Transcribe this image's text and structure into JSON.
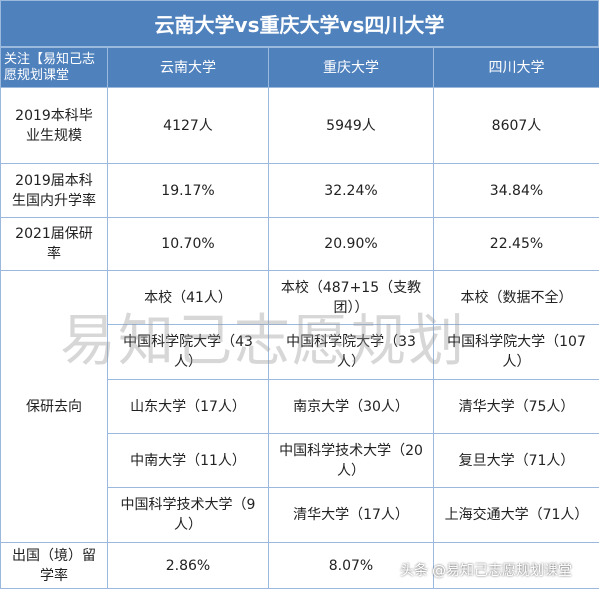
{
  "title": "云南大学vs重庆大学vs四川大学",
  "header": {
    "corner": "关注【易知己志愿规划课堂",
    "col1": "云南大学",
    "col2": "重庆大学",
    "col3": "四川大学"
  },
  "rows": {
    "grads": {
      "label": "2019本科毕业生规模",
      "v1": "4127人",
      "v2": "5949人",
      "v3": "8607人"
    },
    "further": {
      "label": "2019届本科生国内升学率",
      "v1": "19.17%",
      "v2": "32.24%",
      "v3": "34.84%"
    },
    "baoyan": {
      "label": "2021届保研率",
      "v1": "10.70%",
      "v2": "20.90%",
      "v3": "22.45%"
    },
    "dest": {
      "label": "保研去向",
      "items": [
        {
          "v1": "本校（41人）",
          "v2": "本校（487+15（支教团））",
          "v3": "本校（数据不全）"
        },
        {
          "v1": "中国科学院大学（43人）",
          "v2": "中国科学院大学（33人）",
          "v3": "中国科学院大学（107人）"
        },
        {
          "v1": "山东大学（17人）",
          "v2": "南京大学（30人）",
          "v3": "清华大学（75人）"
        },
        {
          "v1": "中南大学（11人）",
          "v2": "中国科学技术大学（20人）",
          "v3": "复旦大学（71人）"
        },
        {
          "v1": "中国科学技术大学（9人）",
          "v2": "清华大学（17人）",
          "v3": "上海交通大学（71人）"
        }
      ]
    },
    "abroad": {
      "label": "出国（境）留学率",
      "v1": "2.86%",
      "v2": "8.07%",
      "v3": ""
    }
  },
  "watermark": "易知己志愿规划",
  "source": {
    "prefix": "头条",
    "account": "@易知己志愿规划课堂"
  }
}
